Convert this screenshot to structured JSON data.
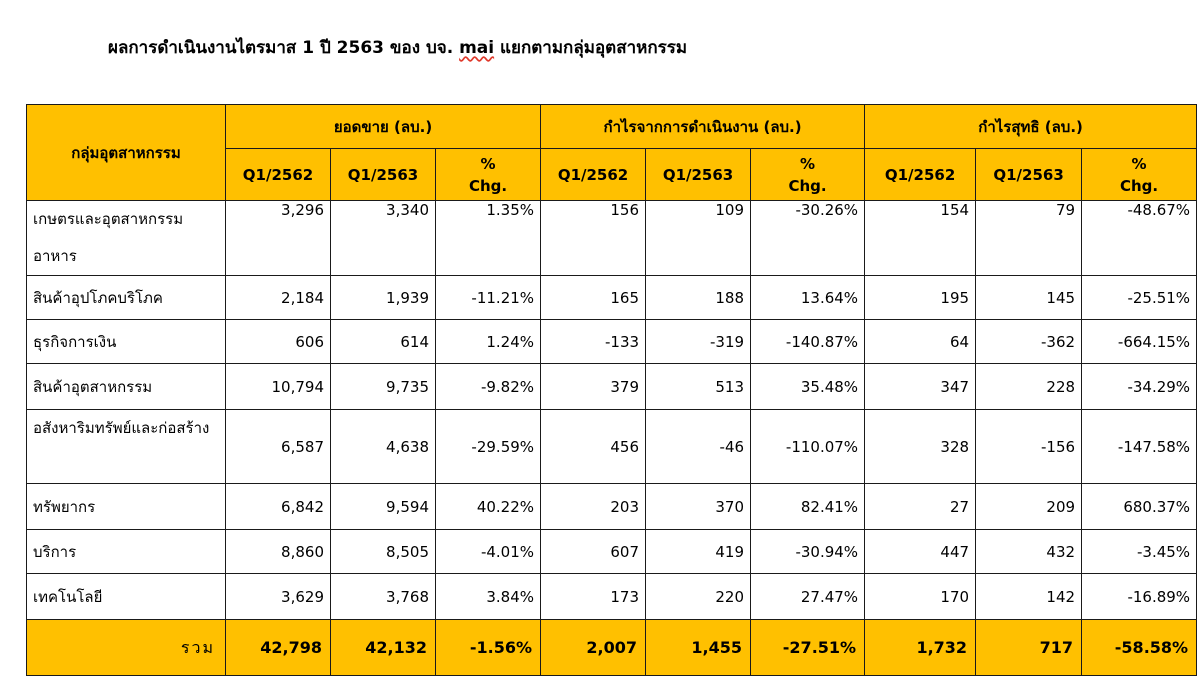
{
  "title": {
    "before": "ผลการดำเนินงานไตรมาส 1 ปี 2563 ของ บจ.",
    "mai": "mai",
    "after": "แยกตามกลุ่มอุตสาหกรรม"
  },
  "table": {
    "group_header": "กลุ่มอุตสาหกรรม",
    "sections": [
      "ยอดขาย (ลบ.)",
      "กำไรจากการดำเนินงาน (ลบ.)",
      "กำไรสุทธิ (ลบ.)"
    ],
    "sub_q1": "Q1/2562",
    "sub_q2": "Q1/2563",
    "sub_pct_1": "%",
    "sub_pct_2": "Chg.",
    "rows": [
      {
        "label": "เกษตรและอุตสาหกรรมอาหาร",
        "cells": [
          "3,296",
          "3,340",
          "1.35%",
          "156",
          "109",
          "-30.26%",
          "154",
          "79",
          "-48.67%"
        ]
      },
      {
        "label": "สินค้าอุปโภคบริโภค",
        "cells": [
          "2,184",
          "1,939",
          "-11.21%",
          "165",
          "188",
          "13.64%",
          "195",
          "145",
          "-25.51%"
        ]
      },
      {
        "label": "ธุรกิจการเงิน",
        "cells": [
          "606",
          "614",
          "1.24%",
          "-133",
          "-319",
          "-140.87%",
          "64",
          "-362",
          "-664.15%"
        ]
      },
      {
        "label": "สินค้าอุตสาหกรรม",
        "cells": [
          "10,794",
          "9,735",
          "-9.82%",
          "379",
          "513",
          "35.48%",
          "347",
          "228",
          "-34.29%"
        ]
      },
      {
        "label": "อสังหาริมทรัพย์และก่อสร้าง",
        "cells": [
          "6,587",
          "4,638",
          "-29.59%",
          "456",
          "-46",
          "-110.07%",
          "328",
          "-156",
          "-147.58%"
        ]
      },
      {
        "label": "ทรัพยากร",
        "cells": [
          "6,842",
          "9,594",
          "40.22%",
          "203",
          "370",
          "82.41%",
          "27",
          "209",
          "680.37%"
        ]
      },
      {
        "label": "บริการ",
        "cells": [
          "8,860",
          "8,505",
          "-4.01%",
          "607",
          "419",
          "-30.94%",
          "447",
          "432",
          "-3.45%"
        ]
      },
      {
        "label": "เทคโนโลยี",
        "cells": [
          "3,629",
          "3,768",
          "3.84%",
          "173",
          "220",
          "27.47%",
          "170",
          "142",
          "-16.89%"
        ]
      }
    ],
    "total": {
      "label": "รวม",
      "cells": [
        "42,798",
        "42,132",
        "-1.56%",
        "2,007",
        "1,455",
        "-27.51%",
        "1,732",
        "717",
        "-58.58%"
      ]
    }
  },
  "colors": {
    "header_fill": "#ffc000",
    "border": "#1a1a1a"
  }
}
